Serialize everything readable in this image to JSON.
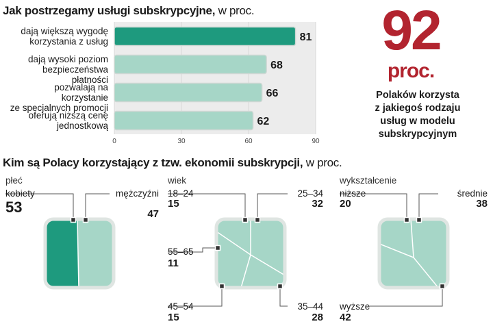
{
  "chart_data": [
    {
      "type": "bar",
      "title": "Jak postrzegamy usługi subskrypcyjne,",
      "unit": "w proc.",
      "categories": [
        "dają większą wygodę korzystania z usług",
        "dają wysoki poziom bezpieczeństwa płatności",
        "pozwalają na korzystanie ze specjalnych promocji",
        "oferują niższą cenę jednostkową"
      ],
      "category_lines": [
        [
          "dają większą wygodę",
          "korzystania z usług"
        ],
        [
          "dają wysoki poziom",
          "bezpieczeństwa płatności"
        ],
        [
          "pozwalają na korzystanie",
          "ze specjalnych promocji"
        ],
        [
          "oferują niższą cenę",
          "jednostkową"
        ]
      ],
      "values": [
        81,
        68,
        66,
        62
      ],
      "xlim": [
        0,
        90
      ],
      "ticks": [
        0,
        30,
        60,
        90
      ],
      "highlight_color": "#1e9a7e",
      "bar_color": "#a6d6c7"
    },
    {
      "type": "treemap",
      "group": "płeć",
      "segments": [
        {
          "label": "kobiety",
          "value": 53,
          "color": "#1e9a7e"
        },
        {
          "label": "mężczyźni",
          "value": 47,
          "color": "#a6d6c7"
        }
      ]
    },
    {
      "type": "treemap",
      "group": "wiek",
      "segments": [
        {
          "label": "18–24",
          "value": 15
        },
        {
          "label": "25–34",
          "value": 32
        },
        {
          "label": "55–65",
          "value": 11
        },
        {
          "label": "45–54",
          "value": 15
        },
        {
          "label": "35–44",
          "value": 28
        }
      ],
      "color": "#a6d6c7"
    },
    {
      "type": "treemap",
      "group": "wykształcenie",
      "segments": [
        {
          "label": "niższe",
          "value": 20
        },
        {
          "label": "średnie",
          "value": 38
        },
        {
          "label": "wyższe",
          "value": 42
        }
      ],
      "color": "#a6d6c7"
    }
  ],
  "highlight": {
    "number": "92",
    "unit": "proc.",
    "lines": [
      "Polaków korzysta",
      "z jakiegoś rodzaju",
      "usług w modelu",
      "subskrypcyjnym"
    ]
  },
  "section2": {
    "title": "Kim są Polacy korzystający z tzw. ekonomii subskrypcji,",
    "unit": "w proc."
  },
  "colors": {
    "accent": "#b2242f",
    "dark_teal": "#1e9a7e",
    "light_teal": "#a6d6c7",
    "plot_bg": "#ececec"
  }
}
